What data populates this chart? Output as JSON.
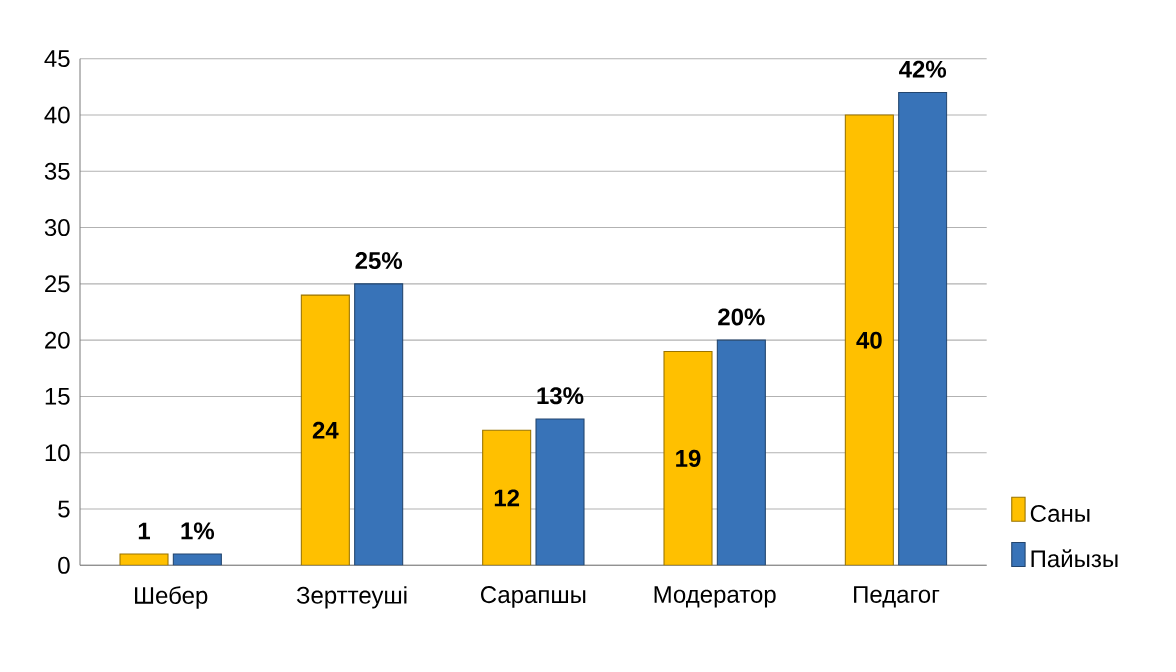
{
  "chart_data": {
    "type": "bar",
    "categories": [
      "Шебер",
      "Зерттеуші",
      "Сарапшы",
      "Модератор",
      "Педагог"
    ],
    "series": [
      {
        "name": "Саны",
        "color": "#ffc000",
        "values": [
          1,
          24,
          12,
          19,
          40
        ],
        "value_labels": [
          "1",
          "24",
          "12",
          "19",
          "40"
        ]
      },
      {
        "name": "Пайызы",
        "color": "#3873b8",
        "values": [
          1,
          25,
          13,
          20,
          42
        ],
        "value_labels": [
          "1%",
          "25%",
          "13%",
          "20%",
          "42%"
        ]
      }
    ],
    "ylim": [
      0,
      45
    ],
    "yticks": [
      0,
      5,
      10,
      15,
      20,
      25,
      30,
      35,
      40,
      45
    ],
    "grid": "y",
    "legend": "bottom right"
  }
}
